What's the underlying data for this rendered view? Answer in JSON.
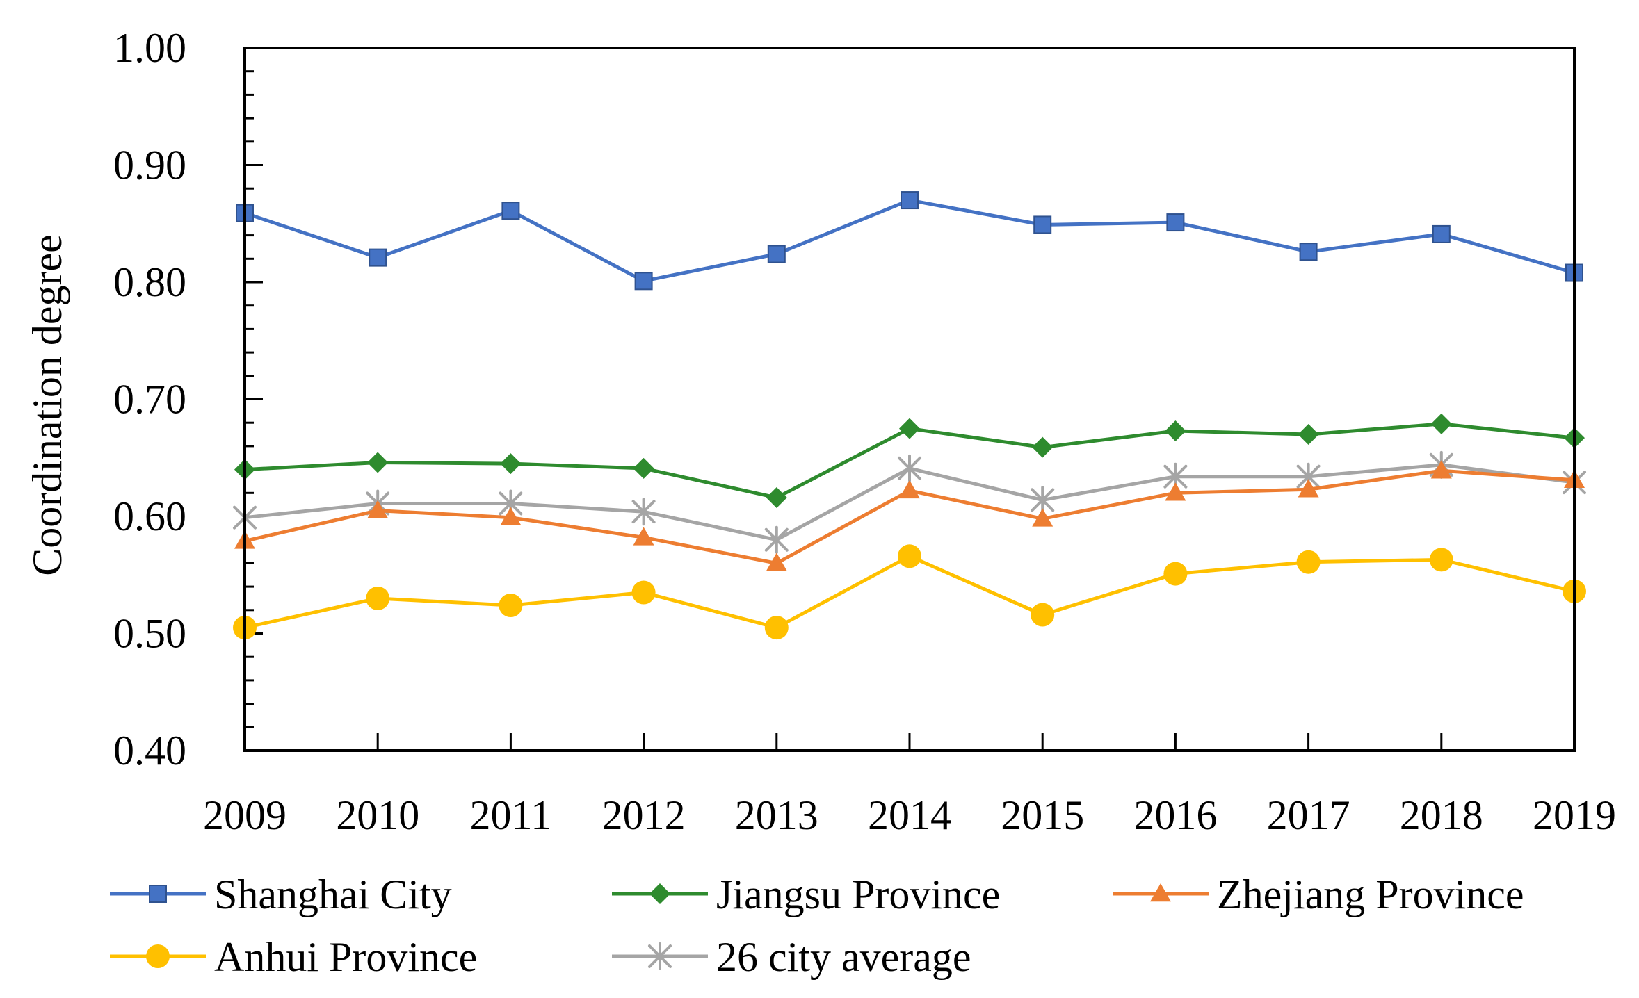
{
  "chart_data": {
    "type": "line",
    "title": "",
    "xlabel": "",
    "ylabel": "Coordination degree",
    "x": [
      "2009",
      "2010",
      "2011",
      "2012",
      "2013",
      "2014",
      "2015",
      "2016",
      "2017",
      "2018",
      "2019"
    ],
    "ylim": [
      0.4,
      1.0
    ],
    "yticks": [
      "0.40",
      "0.50",
      "0.60",
      "0.70",
      "0.80",
      "0.90",
      "1.00"
    ],
    "grid": false,
    "legend_position": "bottom",
    "series": [
      {
        "name": "Shanghai City",
        "color": "#4472C4",
        "marker": "square",
        "values": [
          0.859,
          0.821,
          0.861,
          0.801,
          0.824,
          0.87,
          0.849,
          0.851,
          0.826,
          0.841,
          0.808
        ]
      },
      {
        "name": "Jiangsu Province",
        "color": "#2E8B2E",
        "marker": "diamond",
        "values": [
          0.64,
          0.646,
          0.645,
          0.641,
          0.616,
          0.675,
          0.659,
          0.673,
          0.67,
          0.679,
          0.667
        ]
      },
      {
        "name": "Zhejiang Province",
        "color": "#ED7D31",
        "marker": "triangle",
        "values": [
          0.579,
          0.605,
          0.599,
          0.582,
          0.56,
          0.622,
          0.598,
          0.62,
          0.623,
          0.639,
          0.631
        ]
      },
      {
        "name": "Anhui Province",
        "color": "#FFC000",
        "marker": "circle",
        "values": [
          0.505,
          0.53,
          0.524,
          0.535,
          0.505,
          0.566,
          0.516,
          0.551,
          0.561,
          0.563,
          0.536
        ]
      },
      {
        "name": "26 city average",
        "color": "#A5A5A5",
        "marker": "star",
        "values": [
          0.599,
          0.611,
          0.611,
          0.604,
          0.58,
          0.641,
          0.614,
          0.634,
          0.634,
          0.644,
          0.629
        ]
      }
    ]
  }
}
